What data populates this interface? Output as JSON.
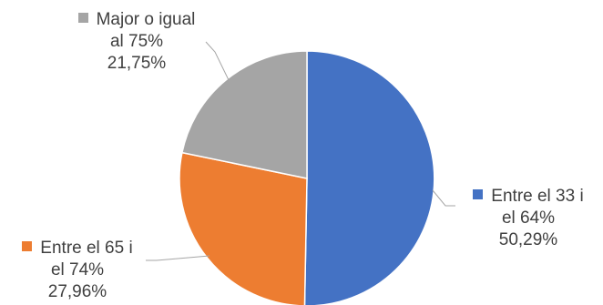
{
  "chart_data": {
    "type": "pie",
    "title": "",
    "slices": [
      {
        "name": "Entre el 33 i el 64%",
        "name_lines": [
          "Entre el 33 i",
          "el 64%"
        ],
        "value": 50.29,
        "value_label": "50,29%",
        "color": "#4472C4"
      },
      {
        "name": "Entre el 65 i el 74%",
        "name_lines": [
          "Entre el 65 i",
          "el 74%"
        ],
        "value": 27.96,
        "value_label": "27,96%",
        "color": "#ED7D31"
      },
      {
        "name": "Major o igual al 75%",
        "name_lines": [
          "Major o igual",
          "al 75%"
        ],
        "value": 21.75,
        "value_label": "21,75%",
        "color": "#A5A5A5"
      }
    ],
    "start_angle_deg": 0,
    "direction": "clockwise",
    "legend": "callout labels with leader lines"
  }
}
